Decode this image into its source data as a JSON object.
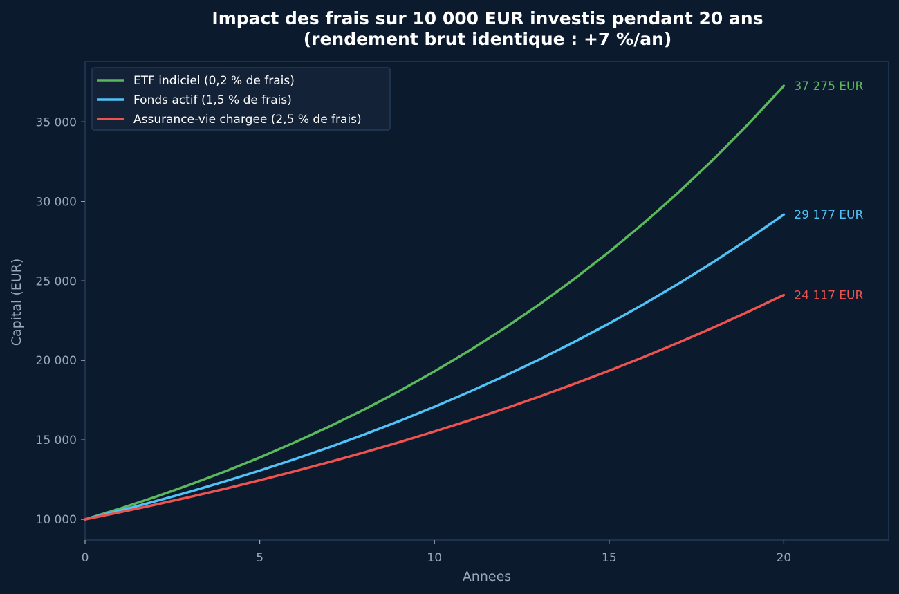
{
  "chart_data": {
    "type": "line",
    "title_line1": "Impact des frais sur 10 000 EUR investis pendant 20 ans",
    "title_line2": "(rendement brut identique : +7 %/an)",
    "xlabel": "Annees",
    "ylabel": "Capital (EUR)",
    "xlim": [
      0,
      23
    ],
    "ylim": [
      8700,
      38800
    ],
    "x_ticks": [
      0,
      5,
      10,
      15,
      20
    ],
    "y_ticks": [
      10000,
      15000,
      20000,
      25000,
      30000,
      35000
    ],
    "y_tick_labels": [
      "10 000",
      "15 000",
      "20 000",
      "25 000",
      "30 000",
      "35 000"
    ],
    "grid": false,
    "legend_position": "top-left",
    "x": [
      0,
      1,
      2,
      3,
      4,
      5,
      6,
      7,
      8,
      9,
      10,
      11,
      12,
      13,
      14,
      15,
      16,
      17,
      18,
      19,
      20
    ],
    "series": [
      {
        "name": "ETF indiciel (0,2 % de frais)",
        "color": "#5cb85c",
        "end_label": "37 275 EUR",
        "values": [
          10000,
          10680,
          11406,
          12182,
          13010,
          13895,
          14840,
          15849,
          16927,
          18078,
          19307,
          20620,
          22022,
          23519,
          25119,
          26827,
          28651,
          30599,
          32680,
          34902,
          37275
        ]
      },
      {
        "name": "Fonds actif (1,5 % de frais)",
        "color": "#4fc3f7",
        "end_label": "29 177 EUR",
        "values": [
          10000,
          10550,
          11130,
          11742,
          12388,
          13070,
          13788,
          14547,
          15347,
          16191,
          17081,
          18021,
          19012,
          20058,
          21161,
          22324,
          23552,
          24848,
          26214,
          27656,
          29177
        ]
      },
      {
        "name": "Assurance-vie chargee (2,5 % de frais)",
        "color": "#ef5350",
        "end_label": "24 117 EUR",
        "values": [
          10000,
          10450,
          10920,
          11412,
          11925,
          12462,
          13023,
          13609,
          14221,
          14861,
          15530,
          16229,
          16959,
          17722,
          18520,
          19353,
          20224,
          21134,
          22085,
          23079,
          24117
        ]
      }
    ]
  },
  "colors": {
    "background": "#0c1a2d",
    "frame": "#243a59",
    "legend_bg": "#142238"
  }
}
